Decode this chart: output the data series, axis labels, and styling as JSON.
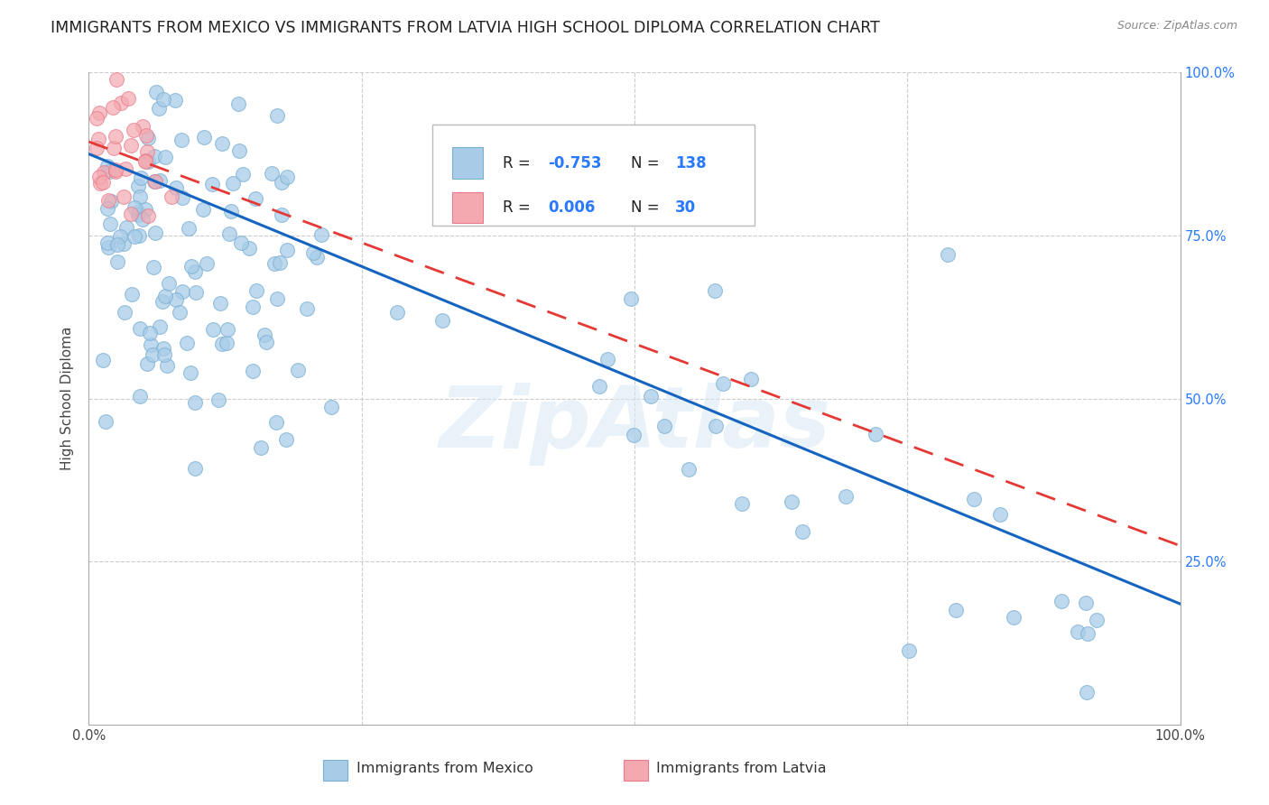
{
  "title": "IMMIGRANTS FROM MEXICO VS IMMIGRANTS FROM LATVIA HIGH SCHOOL DIPLOMA CORRELATION CHART",
  "source": "Source: ZipAtlas.com",
  "ylabel": "High School Diploma",
  "legend_label_blue": "Immigrants from Mexico",
  "legend_label_pink": "Immigrants from Latvia",
  "blue_color": "#a8cce8",
  "pink_color": "#f4a9b0",
  "blue_edge": "#7ab0d4",
  "pink_edge": "#e87a8a",
  "line_blue_color": "#1565c0",
  "line_pink_color": "#e53935",
  "gridline_color": "#cccccc",
  "background_color": "#ffffff",
  "watermark": "ZipAtlas",
  "right_tick_color": "#2979ff",
  "title_fontsize": 12.5,
  "axis_label_fontsize": 11,
  "tick_fontsize": 10.5,
  "legend_fontsize": 12,
  "source_fontsize": 9
}
